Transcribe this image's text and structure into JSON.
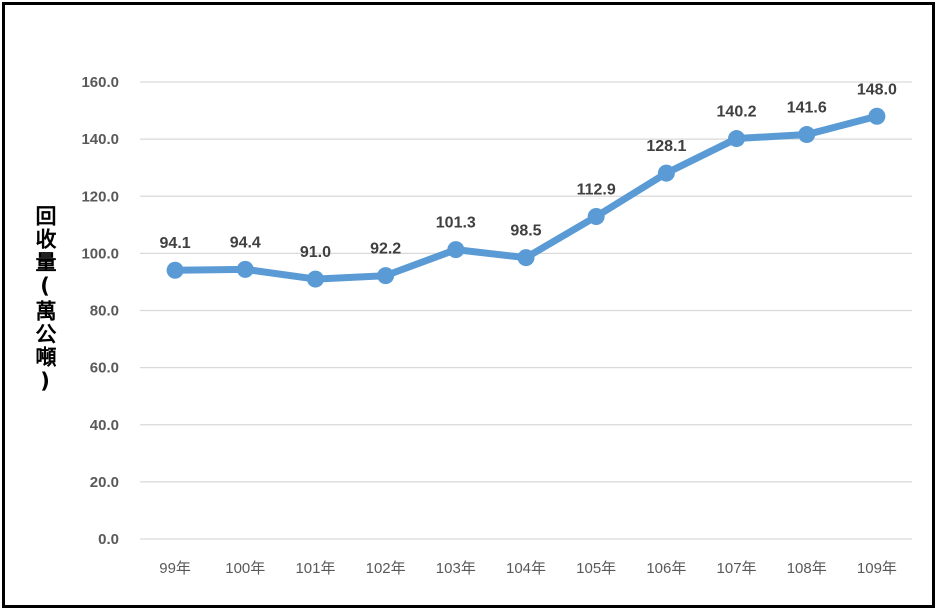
{
  "chart_data": {
    "type": "line",
    "title": "",
    "xlabel": "",
    "ylabel": "回收量(萬公噸)",
    "categories": [
      "99年",
      "100年",
      "101年",
      "102年",
      "103年",
      "104年",
      "105年",
      "106年",
      "107年",
      "108年",
      "109年"
    ],
    "values": [
      94.1,
      94.4,
      91.0,
      92.2,
      101.3,
      98.5,
      112.9,
      128.1,
      140.2,
      141.6,
      148.0
    ],
    "value_labels": [
      "94.1",
      "94.4",
      "91.0",
      "92.2",
      "101.3",
      "98.5",
      "112.9",
      "128.1",
      "140.2",
      "141.6",
      "148.0"
    ],
    "ylim": [
      0,
      160
    ],
    "yticks": [
      "0.0",
      "20.0",
      "40.0",
      "60.0",
      "80.0",
      "100.0",
      "120.0",
      "140.0",
      "160.0"
    ],
    "grid": true,
    "legend": "none",
    "line_color": "#5B9BD5",
    "grid_color": "#D9D9D9"
  }
}
